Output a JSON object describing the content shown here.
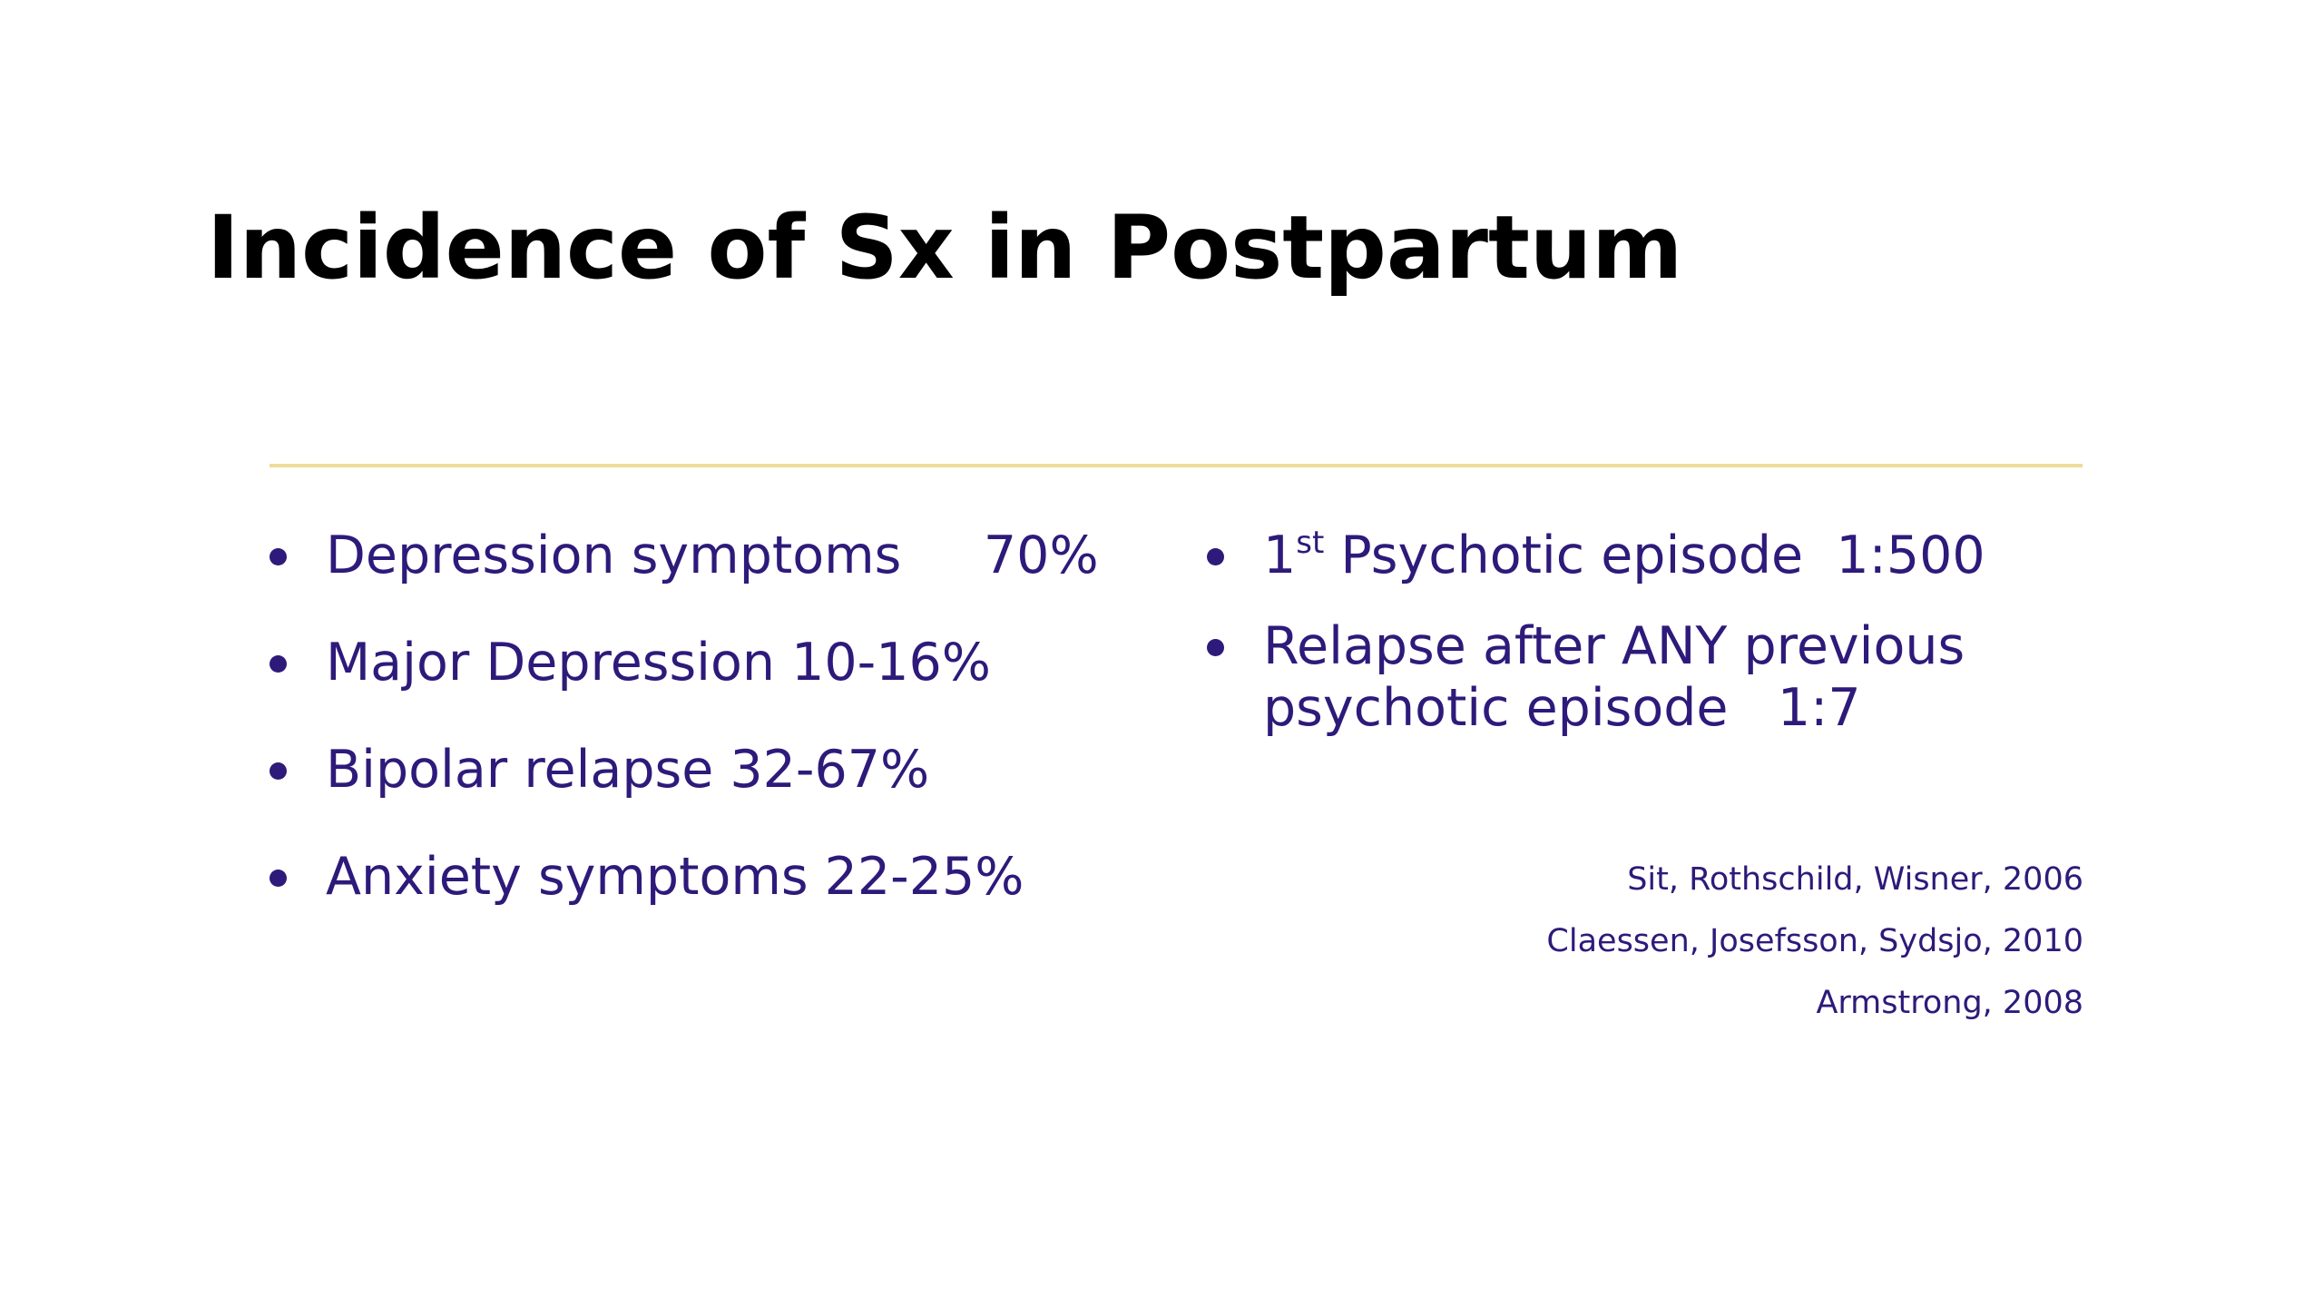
{
  "slide": {
    "title": "Incidence of Sx in Postpartum",
    "left_items": [
      "Depression symptoms     70%",
      "Major Depression 10-16%",
      "Bipolar relapse 32-67%",
      "Anxiety symptoms 22-25%"
    ],
    "right_items": [
      {
        "num": "1",
        "sup": "st",
        "text": " Psychotic episode  1:500"
      },
      {
        "text": "Relapse after ANY previous\npsychotic episode   1:7"
      }
    ],
    "references": [
      "Sit, Rothschild, Wisner, 2006",
      "Claessen, Josefsson, Sydsjo, 2010",
      "Armstrong, 2008"
    ]
  },
  "colors": {
    "title": "#000000",
    "body_text": "#2e1a7a",
    "divider": "#eedc9a",
    "background": "#ffffff"
  }
}
